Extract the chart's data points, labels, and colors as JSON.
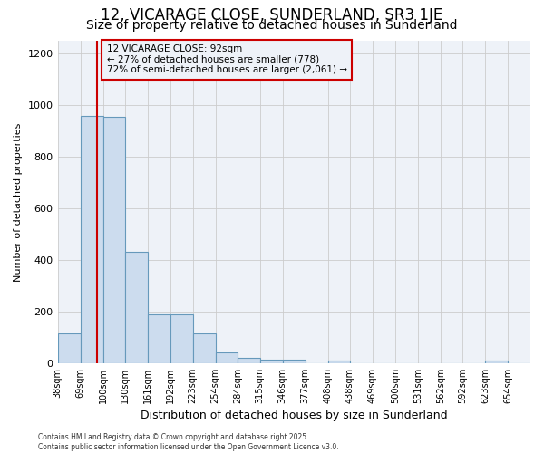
{
  "title_line1": "12, VICARAGE CLOSE, SUNDERLAND, SR3 1JE",
  "title_line2": "Size of property relative to detached houses in Sunderland",
  "xlabel": "Distribution of detached houses by size in Sunderland",
  "ylabel": "Number of detached properties",
  "bar_color": "#ccdcee",
  "bar_edge_color": "#6699bb",
  "grid_color": "#cccccc",
  "annotation_box_color": "#cc0000",
  "vline_color": "#cc0000",
  "annotation_text_line1": "12 VICARAGE CLOSE: 92sqm",
  "annotation_text_line2": "← 27% of detached houses are smaller (778)",
  "annotation_text_line3": "72% of semi-detached houses are larger (2,061) →",
  "property_size": 92,
  "footnote": "Contains HM Land Registry data © Crown copyright and database right 2025.\nContains public sector information licensed under the Open Government Licence v3.0.",
  "bin_labels": [
    "38sqm",
    "69sqm",
    "100sqm",
    "130sqm",
    "161sqm",
    "192sqm",
    "223sqm",
    "254sqm",
    "284sqm",
    "315sqm",
    "346sqm",
    "377sqm",
    "408sqm",
    "438sqm",
    "469sqm",
    "500sqm",
    "531sqm",
    "562sqm",
    "592sqm",
    "623sqm",
    "654sqm"
  ],
  "bin_edges": [
    38,
    69,
    100,
    130,
    161,
    192,
    223,
    254,
    284,
    315,
    346,
    377,
    408,
    438,
    469,
    500,
    531,
    562,
    592,
    623,
    654
  ],
  "bar_heights": [
    115,
    960,
    955,
    430,
    190,
    190,
    115,
    40,
    20,
    15,
    15,
    0,
    10,
    0,
    0,
    0,
    0,
    0,
    0,
    10,
    0
  ],
  "ylim": [
    0,
    1250
  ],
  "yticks": [
    0,
    200,
    400,
    600,
    800,
    1000,
    1200
  ],
  "background_color": "#ffffff",
  "plot_bg_color": "#eef2f8",
  "title_fontsize": 12,
  "subtitle_fontsize": 10
}
